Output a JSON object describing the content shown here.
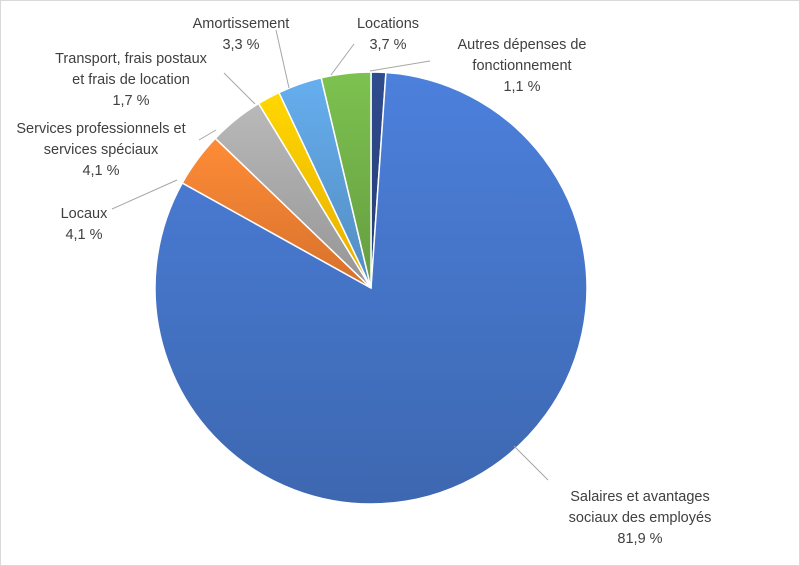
{
  "chart_data": {
    "type": "pie",
    "title": "",
    "slices": [
      {
        "label": "Autres dépenses de fonctionnement",
        "value": 1.1,
        "value_label": "1,1 %",
        "color": "#2a4480"
      },
      {
        "label": "Salaires et avantages sociaux des employés",
        "value": 81.9,
        "value_label": "81,9 %",
        "color": "#4472c4"
      },
      {
        "label": "Locaux",
        "value": 4.1,
        "value_label": "4,1 %",
        "color": "#ed7d31"
      },
      {
        "label": "Services professionnels et services spéciaux",
        "value": 4.1,
        "value_label": "4,1 %",
        "color": "#a5a5a5"
      },
      {
        "label": "Transport, frais postaux et frais de location",
        "value": 1.7,
        "value_label": "1,7 %",
        "color": "#ffc000"
      },
      {
        "label": "Amortissement",
        "value": 3.3,
        "value_label": "3,3 %",
        "color": "#5b9bd5"
      },
      {
        "label": "Locations",
        "value": 3.7,
        "value_label": "3,7 %",
        "color": "#70ad47"
      }
    ],
    "legend": "none",
    "data_labels": "outside with leader lines"
  }
}
